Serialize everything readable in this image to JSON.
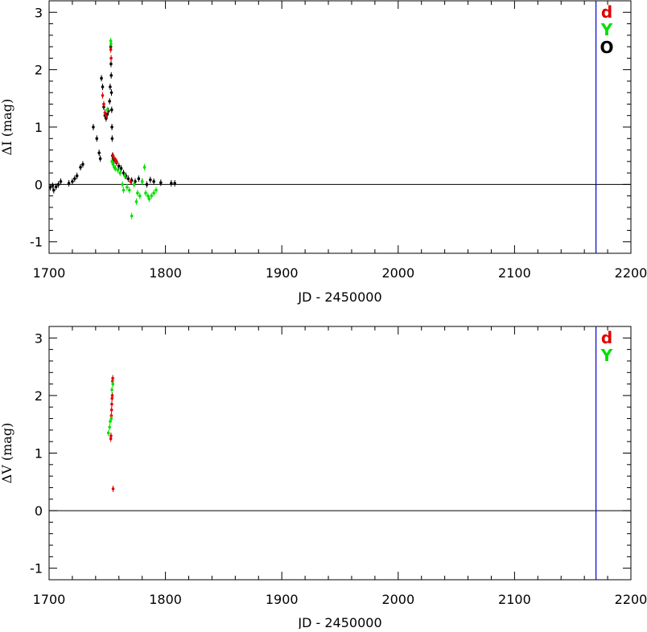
{
  "chart_data": [
    {
      "type": "scatter",
      "xlabel": "JD - 2450000",
      "ylabel": "ΔI (mag)",
      "xlim": [
        1700,
        2200
      ],
      "ylim": [
        -1.2,
        3.2
      ],
      "x_ticks": [
        1700,
        1800,
        1900,
        2000,
        2100,
        2200
      ],
      "y_ticks": [
        -1,
        0,
        1,
        2,
        3
      ],
      "reference_line_y": 0,
      "vertical_line_x": 2170,
      "legend_position": "top-right",
      "legend": [
        {
          "label": "d",
          "color": "#e00000"
        },
        {
          "label": "Y",
          "color": "#00e000"
        },
        {
          "label": "O",
          "color": "#000000"
        }
      ],
      "series": [
        {
          "name": "O",
          "color": "#000000",
          "points": [
            [
              1701,
              -0.05
            ],
            [
              1703,
              -0.02
            ],
            [
              1704,
              -0.1
            ],
            [
              1706,
              -0.04
            ],
            [
              1708,
              0.0
            ],
            [
              1710,
              0.05
            ],
            [
              1717,
              0.02
            ],
            [
              1720,
              0.05
            ],
            [
              1722,
              0.1
            ],
            [
              1724,
              0.15
            ],
            [
              1727,
              0.3
            ],
            [
              1729,
              0.35
            ],
            [
              1738,
              1.0
            ],
            [
              1741,
              0.8
            ],
            [
              1743,
              0.55
            ],
            [
              1744,
              0.45
            ],
            [
              1745,
              1.85
            ],
            [
              1746,
              1.7
            ],
            [
              1747,
              1.35
            ],
            [
              1748,
              1.2
            ],
            [
              1749,
              1.15
            ],
            [
              1750,
              1.22
            ],
            [
              1751,
              1.28
            ],
            [
              1752,
              1.45
            ],
            [
              1752.5,
              1.7
            ],
            [
              1753,
              2.4
            ],
            [
              1753.2,
              2.1
            ],
            [
              1753.4,
              1.9
            ],
            [
              1753.6,
              1.6
            ],
            [
              1753.8,
              1.3
            ],
            [
              1754,
              1.0
            ],
            [
              1754.2,
              0.8
            ],
            [
              1754.5,
              0.5
            ],
            [
              1755,
              0.45
            ],
            [
              1756,
              0.42
            ],
            [
              1758,
              0.38
            ],
            [
              1760,
              0.32
            ],
            [
              1762,
              0.28
            ],
            [
              1764,
              0.2
            ],
            [
              1766,
              0.15
            ],
            [
              1768,
              0.1
            ],
            [
              1771,
              0.07
            ],
            [
              1774,
              0.05
            ],
            [
              1777,
              0.1
            ],
            [
              1780,
              0.05
            ],
            [
              1784,
              0.0
            ],
            [
              1787,
              0.08
            ],
            [
              1790,
              0.05
            ],
            [
              1796,
              0.03
            ],
            [
              1805,
              0.02
            ],
            [
              1808,
              0.02
            ]
          ]
        },
        {
          "name": "d",
          "color": "#e00000",
          "points": [
            [
              1746,
              1.55
            ],
            [
              1747,
              1.4
            ],
            [
              1748,
              1.25
            ],
            [
              1749,
              1.2
            ],
            [
              1753,
              2.35
            ],
            [
              1753.3,
              2.2
            ],
            [
              1755,
              0.5
            ],
            [
              1756,
              0.45
            ],
            [
              1757,
              0.42
            ],
            [
              1758,
              0.4
            ],
            [
              1770,
              0.05
            ]
          ]
        },
        {
          "name": "Y",
          "color": "#00e000",
          "points": [
            [
              1750,
              1.3
            ],
            [
              1753,
              2.5
            ],
            [
              1753.2,
              2.45
            ],
            [
              1754,
              0.4
            ],
            [
              1755,
              0.35
            ],
            [
              1756,
              0.3
            ],
            [
              1757,
              0.28
            ],
            [
              1759,
              0.25
            ],
            [
              1761,
              0.2
            ],
            [
              1763,
              0.0
            ],
            [
              1764,
              -0.1
            ],
            [
              1765,
              0.15
            ],
            [
              1767,
              -0.05
            ],
            [
              1769,
              -0.1
            ],
            [
              1771,
              -0.55
            ],
            [
              1773,
              0.0
            ],
            [
              1775,
              -0.3
            ],
            [
              1776,
              -0.15
            ],
            [
              1778,
              -0.2
            ],
            [
              1780,
              0.05
            ],
            [
              1782,
              0.3
            ],
            [
              1783,
              -0.15
            ],
            [
              1785,
              -0.2
            ],
            [
              1786,
              -0.25
            ],
            [
              1788,
              -0.2
            ],
            [
              1790,
              -0.15
            ],
            [
              1792,
              -0.1
            ]
          ]
        }
      ]
    },
    {
      "type": "scatter",
      "xlabel": "JD - 2450000",
      "ylabel": "ΔV (mag)",
      "xlim": [
        1700,
        2200
      ],
      "ylim": [
        -1.2,
        3.2
      ],
      "x_ticks": [
        1700,
        1800,
        1900,
        2000,
        2100,
        2200
      ],
      "y_ticks": [
        -1,
        0,
        1,
        2,
        3
      ],
      "reference_line_y": 0,
      "vertical_line_x": 2170,
      "legend_position": "top-right",
      "legend": [
        {
          "label": "d",
          "color": "#e00000"
        },
        {
          "label": "Y",
          "color": "#00e000"
        }
      ],
      "series": [
        {
          "name": "d",
          "color": "#e00000",
          "points": [
            [
              1753,
              1.25
            ],
            [
              1753.2,
              1.3
            ],
            [
              1753.5,
              1.65
            ],
            [
              1753.7,
              1.75
            ],
            [
              1753.9,
              1.85
            ],
            [
              1754.1,
              1.95
            ],
            [
              1754.3,
              2.0
            ],
            [
              1754.5,
              2.25
            ],
            [
              1754.7,
              2.3
            ],
            [
              1755,
              0.38
            ]
          ]
        },
        {
          "name": "Y",
          "color": "#00e000",
          "points": [
            [
              1751,
              1.35
            ],
            [
              1752,
              1.45
            ],
            [
              1752.5,
              1.55
            ],
            [
              1753.5,
              1.6
            ],
            [
              1754,
              2.1
            ],
            [
              1754.8,
              2.2
            ]
          ]
        }
      ]
    }
  ]
}
